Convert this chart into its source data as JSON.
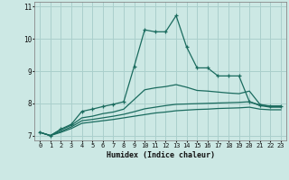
{
  "bg_color": "#cce8e4",
  "grid_color": "#aacfcc",
  "line_color": "#1a6b5e",
  "xlabel": "Humidex (Indice chaleur)",
  "xlim": [
    -0.5,
    23.5
  ],
  "ylim": [
    6.85,
    11.15
  ],
  "yticks": [
    7,
    8,
    9,
    10,
    11
  ],
  "xticks": [
    0,
    1,
    2,
    3,
    4,
    5,
    6,
    7,
    8,
    9,
    10,
    11,
    12,
    13,
    14,
    15,
    16,
    17,
    18,
    19,
    20,
    21,
    22,
    23
  ],
  "series": [
    {
      "x": [
        0,
        1,
        2,
        3,
        4,
        5,
        6,
        7,
        8,
        9,
        10,
        11,
        12,
        13,
        14,
        15,
        16,
        17,
        18,
        19,
        20,
        21,
        22,
        23
      ],
      "y": [
        7.1,
        7.0,
        7.2,
        7.35,
        7.75,
        7.82,
        7.9,
        7.97,
        8.05,
        9.15,
        10.28,
        10.22,
        10.22,
        10.72,
        9.75,
        9.1,
        9.1,
        8.85,
        8.85,
        8.85,
        8.05,
        7.95,
        7.92,
        7.92
      ],
      "marker": true
    },
    {
      "x": [
        0,
        1,
        2,
        3,
        4,
        5,
        6,
        7,
        8,
        9,
        10,
        11,
        12,
        13,
        14,
        15,
        16,
        17,
        18,
        19,
        20,
        21,
        22,
        23
      ],
      "y": [
        7.1,
        7.0,
        7.18,
        7.32,
        7.55,
        7.6,
        7.68,
        7.73,
        7.82,
        8.12,
        8.42,
        8.48,
        8.52,
        8.58,
        8.5,
        8.4,
        8.38,
        8.35,
        8.32,
        8.3,
        8.38,
        7.97,
        7.9,
        7.9
      ],
      "marker": false
    },
    {
      "x": [
        0,
        1,
        2,
        3,
        4,
        5,
        6,
        7,
        8,
        9,
        10,
        11,
        12,
        13,
        14,
        15,
        16,
        17,
        18,
        19,
        20,
        21,
        22,
        23
      ],
      "y": [
        7.1,
        7.0,
        7.13,
        7.27,
        7.46,
        7.5,
        7.55,
        7.6,
        7.66,
        7.74,
        7.83,
        7.88,
        7.93,
        7.97,
        7.98,
        7.99,
        8.0,
        8.01,
        8.02,
        8.03,
        8.05,
        7.93,
        7.88,
        7.88
      ],
      "marker": false
    },
    {
      "x": [
        0,
        1,
        2,
        3,
        4,
        5,
        6,
        7,
        8,
        9,
        10,
        11,
        12,
        13,
        14,
        15,
        16,
        17,
        18,
        19,
        20,
        21,
        22,
        23
      ],
      "y": [
        7.1,
        7.0,
        7.1,
        7.22,
        7.38,
        7.42,
        7.46,
        7.5,
        7.55,
        7.6,
        7.65,
        7.7,
        7.73,
        7.77,
        7.79,
        7.81,
        7.82,
        7.84,
        7.85,
        7.86,
        7.88,
        7.82,
        7.8,
        7.8
      ],
      "marker": false
    }
  ]
}
